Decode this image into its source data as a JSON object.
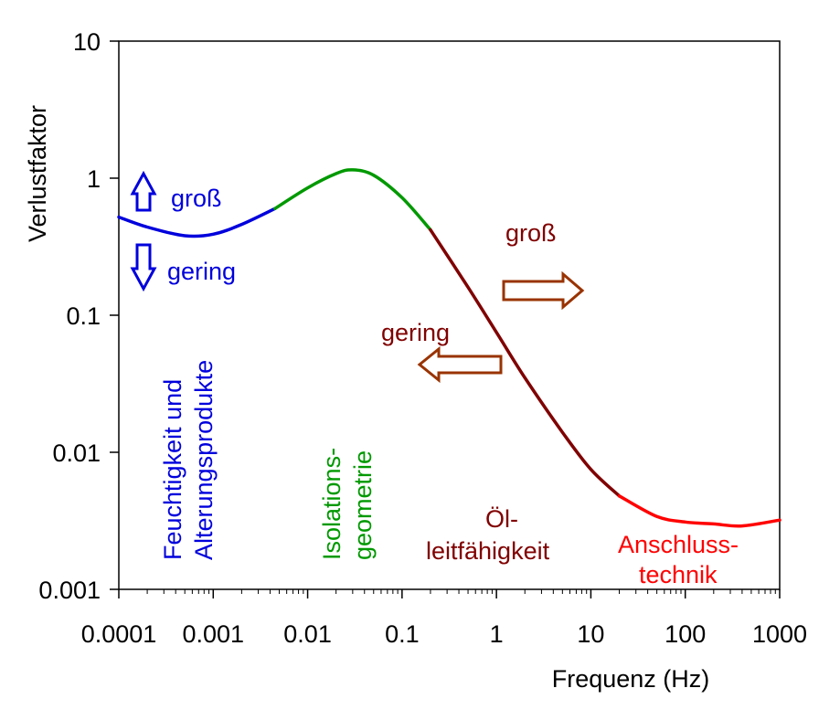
{
  "chart_data": {
    "type": "line",
    "xlabel": "Frequenz (Hz)",
    "ylabel": "Verlustfaktor",
    "xscale": "log",
    "yscale": "log",
    "xlim": [
      0.0001,
      1000
    ],
    "ylim": [
      0.001,
      10
    ],
    "x_ticks": [
      "0.0001",
      "0.001",
      "0.01",
      "0.1",
      "1",
      "10",
      "100",
      "1000"
    ],
    "y_ticks": [
      "0.001",
      "0.01",
      "0.1",
      "1",
      "10"
    ],
    "grid": false,
    "series": [
      {
        "color": "#0000dd",
        "points": [
          [
            0.0001,
            0.52
          ],
          [
            0.0002,
            0.44
          ],
          [
            0.0005,
            0.38
          ],
          [
            0.001,
            0.39
          ],
          [
            0.002,
            0.46
          ],
          [
            0.0045,
            0.6
          ]
        ]
      },
      {
        "color": "#009900",
        "points": [
          [
            0.0045,
            0.6
          ],
          [
            0.01,
            0.85
          ],
          [
            0.02,
            1.08
          ],
          [
            0.03,
            1.15
          ],
          [
            0.05,
            1.05
          ],
          [
            0.1,
            0.72
          ],
          [
            0.2,
            0.42
          ]
        ]
      },
      {
        "color": "#800000",
        "points": [
          [
            0.2,
            0.42
          ],
          [
            0.5,
            0.16
          ],
          [
            1,
            0.075
          ],
          [
            2,
            0.035
          ],
          [
            5,
            0.014
          ],
          [
            10,
            0.0075
          ],
          [
            20,
            0.0048
          ]
        ]
      },
      {
        "color": "#ff0000",
        "points": [
          [
            20,
            0.0048
          ],
          [
            50,
            0.0034
          ],
          [
            100,
            0.0031
          ],
          [
            200,
            0.003
          ],
          [
            400,
            0.0029
          ],
          [
            1000,
            0.0032
          ]
        ]
      }
    ],
    "annotations": {
      "gross_left": "groß",
      "gering_left": "gering",
      "feuchtigkeit_line1": "Feuchtigkeit und",
      "feuchtigkeit_line2": "Alterungsprodukte",
      "isolation_line1": "Isolations-",
      "isolation_line2": "geometrie",
      "gross_right": "groß",
      "gering_right": "gering",
      "oel_line1": "Öl-",
      "oel_line2": "leitfähigkeit",
      "anschluss_line1": "Anschluss-",
      "anschluss_line2": "technik"
    },
    "colors": {
      "blue": "#0000dd",
      "green": "#009900",
      "darkred": "#800000",
      "red": "#ff0000",
      "arrow_brown": "#993300"
    }
  }
}
